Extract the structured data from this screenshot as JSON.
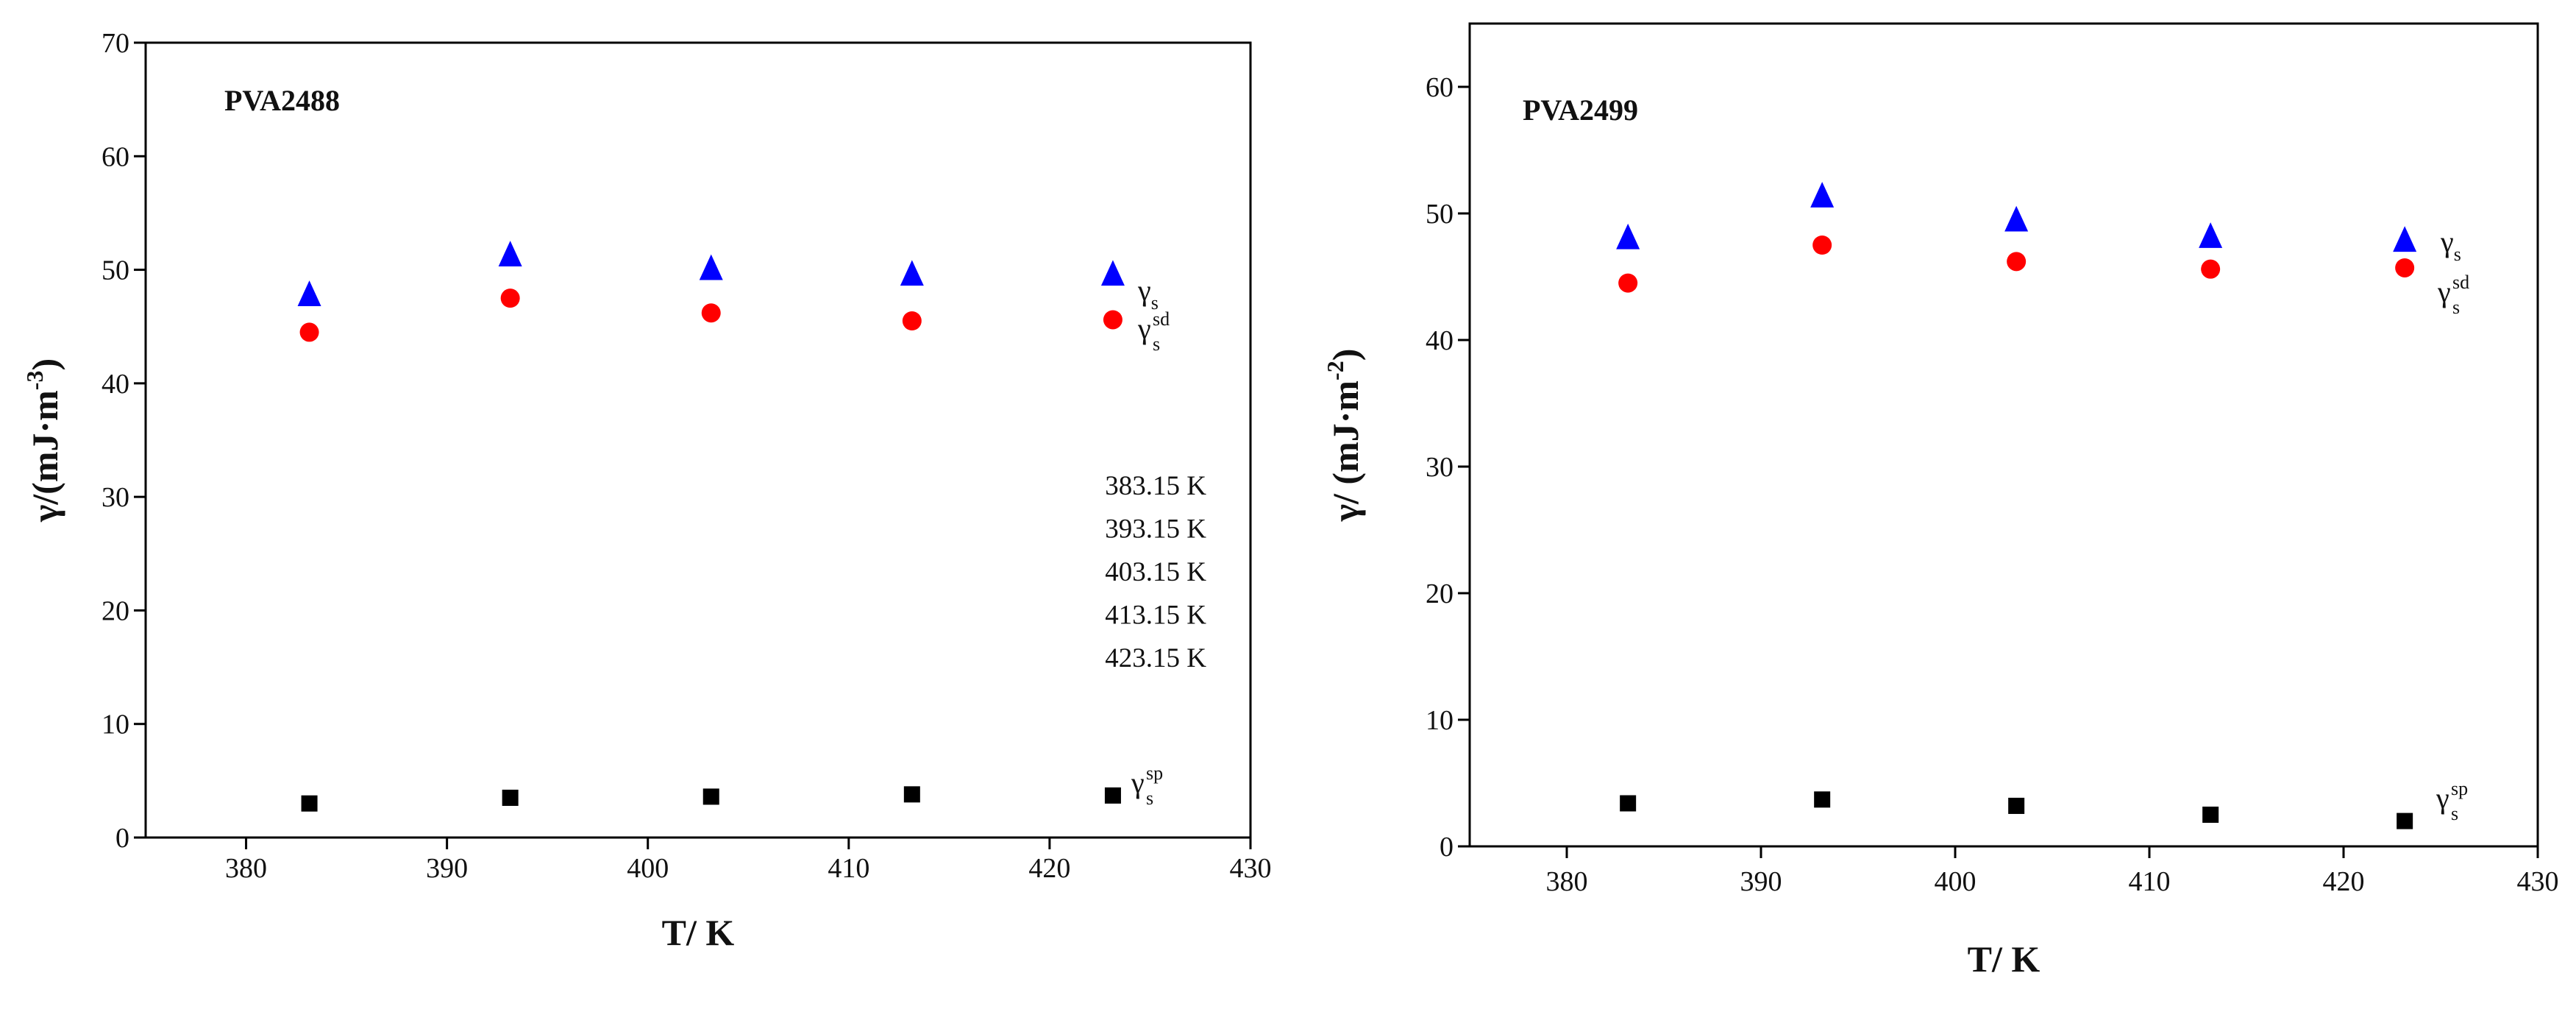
{
  "chart_data": [
    {
      "type": "scatter",
      "panel_label": "PVA2488",
      "xlabel": "T/ K",
      "ylabel": {
        "main": "γ/(mJ·m",
        "sup": "-3",
        "close": ")"
      },
      "xlim": [
        375,
        430
      ],
      "ylim": [
        0,
        70
      ],
      "xticks": [
        380,
        390,
        400,
        410,
        420,
        430
      ],
      "yticks": [
        0,
        10,
        20,
        30,
        40,
        50,
        60,
        70
      ],
      "x": [
        383.15,
        393.15,
        403.15,
        413.15,
        423.15
      ],
      "series": [
        {
          "key": "gs",
          "name": "γs",
          "base": "γ",
          "sub": "s",
          "sup": "",
          "marker": "triangle",
          "color": "#0000ff",
          "values": [
            47.5,
            51.0,
            49.8,
            49.3,
            49.3
          ]
        },
        {
          "key": "gsd",
          "name": "γs sd",
          "base": "γ",
          "sub": "s",
          "sup": "sd",
          "marker": "circle",
          "color": "#ff0000",
          "values": [
            44.5,
            47.5,
            46.2,
            45.5,
            45.6
          ]
        },
        {
          "key": "gsp",
          "name": "γs sp",
          "base": "γ",
          "sub": "s",
          "sup": "sp",
          "marker": "square",
          "color": "#000000",
          "values": [
            3.0,
            3.5,
            3.6,
            3.8,
            3.7
          ]
        }
      ],
      "temperature_list": [
        "383.15 K",
        "393.15 K",
        "403.15 K",
        "413.15 K",
        "423.15 K"
      ],
      "legend": "right"
    },
    {
      "type": "scatter",
      "panel_label": "PVA2499",
      "xlabel": "T/ K",
      "ylabel": {
        "main": "γ/ (mJ·m",
        "sup": "-2",
        "close": ")"
      },
      "xlim": [
        375,
        430
      ],
      "ylim": [
        0,
        65
      ],
      "xticks": [
        380,
        390,
        400,
        410,
        420,
        430
      ],
      "yticks": [
        0,
        10,
        20,
        30,
        40,
        50,
        60
      ],
      "x": [
        383.15,
        393.15,
        403.15,
        413.15,
        423.15
      ],
      "series": [
        {
          "key": "gs",
          "name": "γs",
          "base": "γ",
          "sub": "s",
          "sup": "",
          "marker": "triangle",
          "color": "#0000ff",
          "values": [
            47.8,
            51.1,
            49.2,
            47.9,
            47.6
          ]
        },
        {
          "key": "gsd",
          "name": "γs sd",
          "base": "γ",
          "sub": "s",
          "sup": "sd",
          "marker": "circle",
          "color": "#ff0000",
          "values": [
            44.5,
            47.5,
            46.2,
            45.6,
            45.7
          ]
        },
        {
          "key": "gsp",
          "name": "γs sp",
          "base": "γ",
          "sub": "s",
          "sup": "sp",
          "marker": "square",
          "color": "#000000",
          "values": [
            3.4,
            3.7,
            3.2,
            2.5,
            2.0
          ]
        }
      ],
      "temperature_list": [],
      "legend": "right"
    }
  ]
}
